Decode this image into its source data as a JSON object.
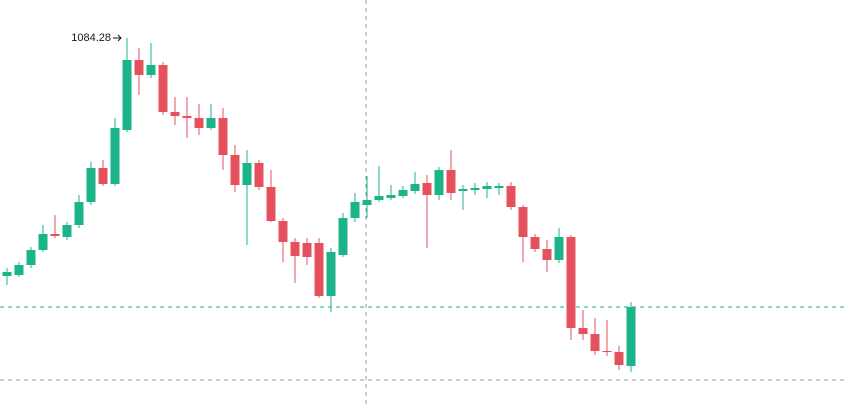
{
  "chart_data": {
    "type": "candlestick",
    "open": [
      965.28,
      965.78,
      970.78,
      978.28,
      986.28,
      984.78,
      990.78,
      1002.28,
      1019.28,
      1011.28,
      1038.28,
      1073.28,
      1065.78,
      1070.78,
      1047.28,
      1045.28,
      1044.28,
      1039.28,
      1044.28,
      1025.78,
      1010.78,
      1021.78,
      1009.78,
      992.78,
      982.28,
      981.78,
      981.78,
      955.28,
      975.78,
      994.28,
      1000.78,
      1003.28,
      1004.28,
      1005.28,
      1007.78,
      1011.78,
      1005.78,
      1018.28,
      1007.78,
      1008.28,
      1008.78,
      1009.28,
      1010.28,
      999.78,
      984.78,
      978.78,
      973.28,
      984.78,
      939.28,
      936.28,
      927.78,
      927.28,
      920.28
    ],
    "high": [
      969.28,
      972.28,
      979.78,
      990.78,
      995.78,
      992.28,
      1005.78,
      1022.28,
      1023.28,
      1044.28,
      1084.28,
      1079.28,
      1081.78,
      1072.28,
      1054.78,
      1054.78,
      1051.28,
      1051.28,
      1049.28,
      1030.78,
      1028.28,
      1023.28,
      1018.28,
      994.28,
      984.28,
      984.28,
      984.28,
      979.28,
      996.78,
      1006.78,
      1015.28,
      1020.28,
      1010.78,
      1010.28,
      1017.28,
      1015.78,
      1019.78,
      1028.28,
      1010.78,
      1011.78,
      1012.28,
      1011.78,
      1012.28,
      1000.78,
      986.28,
      983.28,
      989.28,
      985.78,
      948.28,
      944.28,
      943.28,
      930.28,
      952.28
    ],
    "low": [
      960.78,
      964.78,
      969.28,
      977.28,
      984.28,
      983.28,
      989.28,
      1000.78,
      1010.28,
      1010.28,
      1037.28,
      1055.78,
      1064.28,
      1045.78,
      1040.78,
      1034.28,
      1035.78,
      1038.28,
      1018.28,
      1007.28,
      980.78,
      1008.28,
      992.28,
      972.28,
      961.78,
      970.78,
      954.28,
      947.28,
      974.78,
      992.28,
      994.28,
      1002.28,
      1003.28,
      1004.28,
      1006.28,
      979.28,
      1003.28,
      1003.28,
      998.28,
      1005.78,
      1004.28,
      1005.78,
      998.28,
      972.28,
      977.28,
      967.28,
      971.78,
      933.28,
      933.28,
      925.78,
      925.28,
      918.28,
      917.28
    ],
    "close": [
      967.28,
      970.78,
      978.28,
      986.28,
      985.28,
      990.78,
      1002.28,
      1019.28,
      1011.28,
      1039.28,
      1073.28,
      1065.78,
      1070.78,
      1047.28,
      1045.28,
      1044.28,
      1039.28,
      1044.28,
      1025.78,
      1010.78,
      1021.78,
      1009.78,
      992.78,
      982.28,
      975.28,
      974.78,
      955.28,
      977.28,
      994.28,
      1002.28,
      1003.28,
      1005.28,
      1005.78,
      1008.28,
      1011.28,
      1005.78,
      1018.28,
      1006.78,
      1008.78,
      1009.28,
      1010.28,
      1010.28,
      999.78,
      984.78,
      978.78,
      973.28,
      984.78,
      939.28,
      936.28,
      927.78,
      927.28,
      920.78,
      949.78
    ],
    "up_color": "#1bb38a",
    "down_color": "#e4505c",
    "reference_line": 913.28,
    "ylim": [
      901.28,
      1103.28
    ]
  }
}
